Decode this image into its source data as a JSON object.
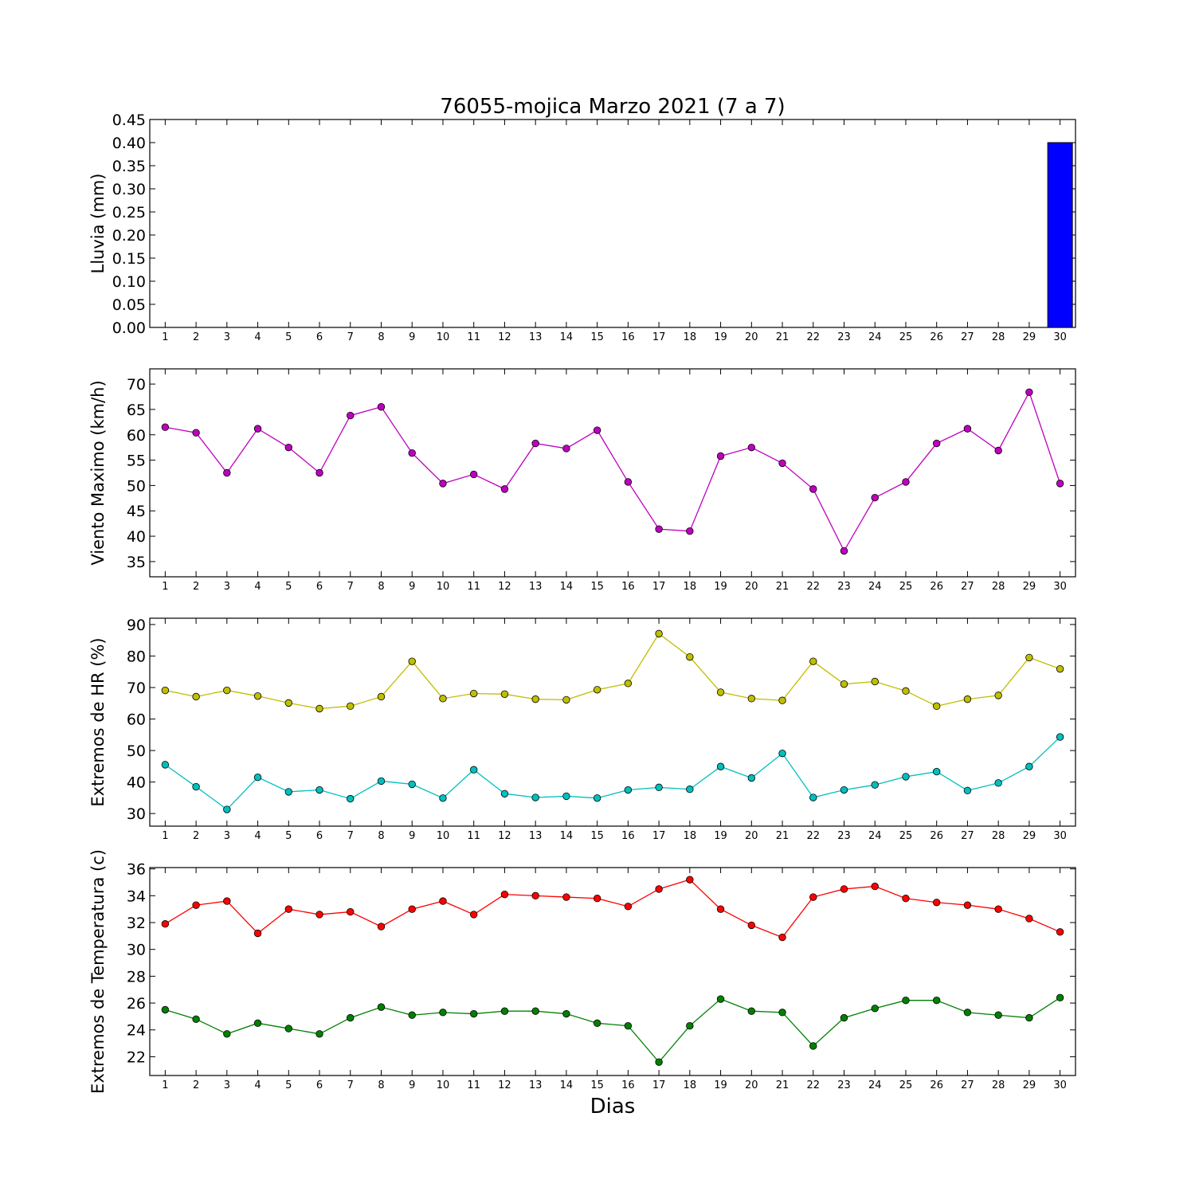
{
  "title": "76055-mojica Marzo 2021  (7 a 7)",
  "xlabel": "Dias",
  "chart_data": [
    {
      "type": "bar",
      "ylabel": "Lluvia (mm)",
      "x": [
        1,
        2,
        3,
        4,
        5,
        6,
        7,
        8,
        9,
        10,
        11,
        12,
        13,
        14,
        15,
        16,
        17,
        18,
        19,
        20,
        21,
        22,
        23,
        24,
        25,
        26,
        27,
        28,
        29,
        30
      ],
      "xlim": [
        0.5,
        30.5
      ],
      "ylim": [
        0,
        0.45
      ],
      "yticks": [
        0.0,
        0.05,
        0.1,
        0.15,
        0.2,
        0.25,
        0.3,
        0.35,
        0.4,
        0.45
      ],
      "ytick_decimals": 2,
      "series": [
        {
          "color": "#0000ff",
          "values": [
            0,
            0,
            0,
            0,
            0,
            0,
            0,
            0,
            0,
            0,
            0,
            0,
            0,
            0,
            0,
            0,
            0,
            0,
            0,
            0,
            0,
            0,
            0,
            0,
            0,
            0,
            0,
            0,
            0,
            0.4
          ]
        }
      ]
    },
    {
      "type": "line",
      "ylabel": "Viento Maximo (km/h)",
      "x": [
        1,
        2,
        3,
        4,
        5,
        6,
        7,
        8,
        9,
        10,
        11,
        12,
        13,
        14,
        15,
        16,
        17,
        18,
        19,
        20,
        21,
        22,
        23,
        24,
        25,
        26,
        27,
        28,
        29,
        30
      ],
      "xlim": [
        0.5,
        30.5
      ],
      "ylim": [
        32,
        73
      ],
      "yticks": [
        35,
        40,
        45,
        50,
        55,
        60,
        65,
        70
      ],
      "ytick_decimals": 0,
      "series": [
        {
          "color": "#bf00bf",
          "values": [
            61.5,
            60.4,
            52.5,
            61.2,
            57.5,
            52.5,
            63.8,
            65.5,
            56.4,
            50.4,
            52.2,
            49.3,
            58.3,
            57.3,
            60.9,
            50.7,
            41.4,
            41.0,
            55.8,
            57.5,
            54.4,
            49.3,
            37.1,
            47.6,
            50.7,
            58.3,
            61.2,
            56.9,
            68.4,
            50.4
          ]
        }
      ]
    },
    {
      "type": "line",
      "ylabel": "Extremos de HR (%)",
      "x": [
        1,
        2,
        3,
        4,
        5,
        6,
        7,
        8,
        9,
        10,
        11,
        12,
        13,
        14,
        15,
        16,
        17,
        18,
        19,
        20,
        21,
        22,
        23,
        24,
        25,
        26,
        27,
        28,
        29,
        30
      ],
      "xlim": [
        0.5,
        30.5
      ],
      "ylim": [
        26,
        92
      ],
      "yticks": [
        30,
        40,
        50,
        60,
        70,
        80,
        90
      ],
      "ytick_decimals": 0,
      "series": [
        {
          "color": "#bfbf00",
          "values": [
            69.1,
            67.1,
            69.1,
            67.3,
            65.1,
            63.3,
            64.1,
            67.1,
            78.3,
            66.5,
            68.1,
            67.9,
            66.3,
            66.1,
            69.3,
            71.3,
            87.1,
            79.7,
            68.5,
            66.5,
            65.9,
            78.3,
            71.1,
            71.9,
            68.9,
            64.1,
            66.3,
            67.5,
            79.5,
            75.9
          ]
        },
        {
          "color": "#00bfbf",
          "values": [
            45.5,
            38.5,
            31.3,
            41.5,
            36.9,
            37.5,
            34.7,
            40.3,
            39.3,
            34.9,
            43.9,
            36.3,
            35.1,
            35.5,
            34.9,
            37.5,
            38.3,
            37.7,
            44.9,
            41.3,
            49.1,
            35.1,
            37.5,
            39.1,
            41.7,
            43.3,
            37.3,
            39.7,
            44.9,
            54.3
          ]
        }
      ]
    },
    {
      "type": "line",
      "ylabel": "Extremos de Temperatura (c)",
      "x": [
        1,
        2,
        3,
        4,
        5,
        6,
        7,
        8,
        9,
        10,
        11,
        12,
        13,
        14,
        15,
        16,
        17,
        18,
        19,
        20,
        21,
        22,
        23,
        24,
        25,
        26,
        27,
        28,
        29,
        30
      ],
      "xlim": [
        0.5,
        30.5
      ],
      "ylim": [
        20.6,
        36.1
      ],
      "yticks": [
        22,
        24,
        26,
        28,
        30,
        32,
        34,
        36
      ],
      "ytick_decimals": 0,
      "series": [
        {
          "color": "#ff0000",
          "values": [
            31.9,
            33.3,
            33.6,
            31.2,
            33.0,
            32.6,
            32.8,
            31.7,
            33.0,
            33.6,
            32.6,
            34.1,
            34.0,
            33.9,
            33.8,
            33.2,
            34.5,
            35.2,
            33.0,
            31.8,
            30.9,
            33.9,
            34.5,
            34.7,
            33.8,
            33.5,
            33.3,
            33.0,
            32.3,
            31.3
          ]
        },
        {
          "color": "#008000",
          "values": [
            25.5,
            24.8,
            23.7,
            24.5,
            24.1,
            23.7,
            24.9,
            25.7,
            25.1,
            25.3,
            25.2,
            25.4,
            25.4,
            25.2,
            24.5,
            24.3,
            21.6,
            24.3,
            26.3,
            25.4,
            25.3,
            22.8,
            24.9,
            25.6,
            26.2,
            26.2,
            25.3,
            25.1,
            24.9,
            26.4
          ]
        }
      ]
    }
  ]
}
